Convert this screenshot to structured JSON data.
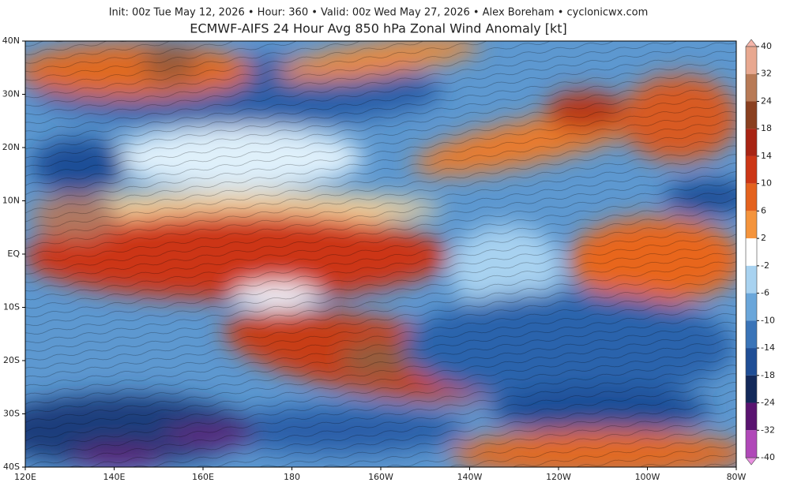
{
  "header": {
    "info": "Init: 00z Tue May 12, 2026  •  Hour: 360  •  Valid: 00z Wed May 27, 2026  •  Alex Boreham  •  cyclonicwx.com",
    "title": "ECMWF-AIFS 24 Hour Avg 850 hPa Zonal Wind Anomaly [kt]"
  },
  "map": {
    "lat_labels": [
      "40N",
      "30N",
      "20N",
      "10N",
      "EQ",
      "10S",
      "20S",
      "30S",
      "40S"
    ],
    "lon_labels": [
      "120E",
      "140E",
      "160E",
      "180",
      "160W",
      "140W",
      "120W",
      "100W",
      "80W"
    ]
  },
  "colorbar": {
    "ticks": [
      40,
      32,
      24,
      18,
      14,
      10,
      6,
      2,
      -2,
      -6,
      -10,
      -14,
      -18,
      -24,
      -32,
      -40
    ],
    "colors": [
      "#e8a890",
      "#b87a56",
      "#8a4020",
      "#a82414",
      "#cc3616",
      "#e4621e",
      "#f4943c",
      "#ffffff",
      "#a8d2f0",
      "#6aa6da",
      "#3a74b8",
      "#1f4e96",
      "#13295a",
      "#5a1470",
      "#b048b8"
    ],
    "over_color": "#f4b4a8",
    "under_color": "#e890e0"
  }
}
